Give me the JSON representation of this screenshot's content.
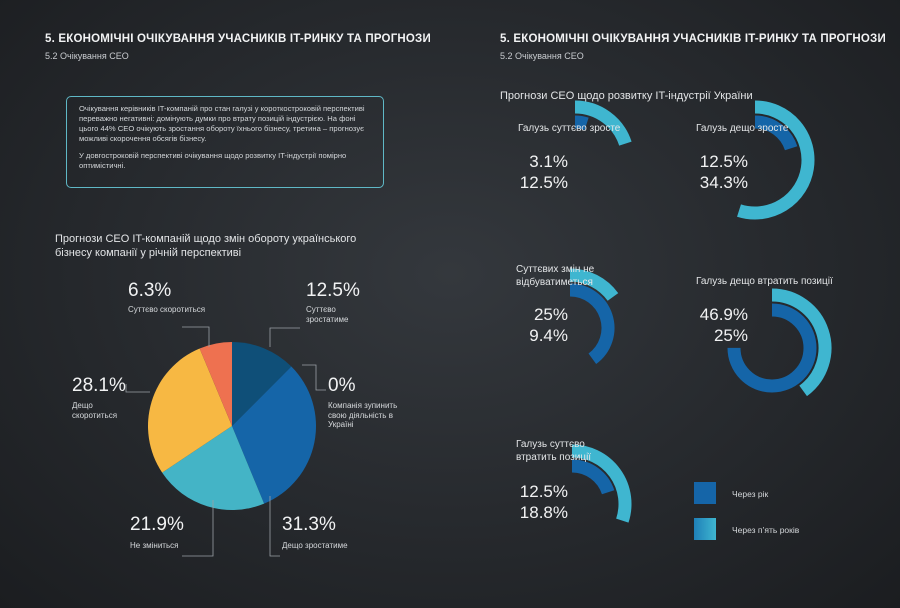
{
  "left": {
    "section_title": "5. ЕКОНОМІЧНІ ОЧІКУВАННЯ УЧАСНИКІВ IT-РИНКУ ТА ПРОГНОЗИ",
    "section_sub": "5.2 Очікування CEO",
    "info_p1": "Очікування керівників IT-компаній про стан галузі у короткостроковій перспективі переважно негативні: домінують думки про втрату позицій індустрією. На фоні цього 44% CEO очікують зростання обороту їхнього бізнесу, третина – прогнозує можливі скорочення обсягів бізнесу.",
    "info_p2": "У довгостроковій перспективі очікування щодо розвитку IT-індустрії помірно оптимістичні."
  },
  "right": {
    "section_title": "5. ЕКОНОМІЧНІ ОЧІКУВАННЯ УЧАСНИКІВ IT-РИНКУ ТА ПРОГНОЗИ",
    "section_sub": "5.2 Очікування CEO"
  },
  "chart_data": [
    {
      "type": "pie",
      "title": "Прогнози CEO IT-компаній щодо змін обороту українського бізнесу компанії у річній перспективі",
      "slices": [
        {
          "label": "Суттєво зростатиме",
          "value": 12.5,
          "value_label": "12.5%",
          "color": "#0f4f78"
        },
        {
          "label": "Компанія зупинить свою діяльність в Україні",
          "value": 0,
          "value_label": "0%",
          "color": "#0a3a5c"
        },
        {
          "label": "Дещо зростатиме",
          "value": 31.3,
          "value_label": "31.3%",
          "color": "#1565a8"
        },
        {
          "label": "Не зміниться",
          "value": 21.9,
          "value_label": "21.9%",
          "color": "#44b4c6"
        },
        {
          "label": "Дещо скоротиться",
          "value": 28.1,
          "value_label": "28.1%",
          "color": "#f7b843"
        },
        {
          "label": "Суттєво скоротиться",
          "value": 6.3,
          "value_label": "6.3%",
          "color": "#ee7150"
        }
      ]
    },
    {
      "type": "radial-bar",
      "title": "Прогнози CEO щодо розвитку IT-індустрії України",
      "series": [
        {
          "name": "Через рік",
          "color": "#1565a8"
        },
        {
          "name": "Через п'ять років",
          "color": "#3fb6d0"
        }
      ],
      "categories": [
        {
          "label": "Галузь суттєво зросте",
          "values": [
            3.1,
            12.5
          ],
          "value_labels": [
            "3.1%",
            "12.5%"
          ]
        },
        {
          "label": "Галузь дещо зросте",
          "values": [
            12.5,
            34.3
          ],
          "value_labels": [
            "12.5%",
            "34.3%"
          ]
        },
        {
          "label": "Суттєвих змін не відбуватиметься",
          "values": [
            25,
            9.4
          ],
          "value_labels": [
            "25%",
            "9.4%"
          ]
        },
        {
          "label": "Галузь дещо втратить позиції",
          "values": [
            46.9,
            25
          ],
          "value_labels": [
            "46.9%",
            "25%"
          ]
        },
        {
          "label": "Галузь суттєво втратить позиції",
          "values": [
            12.5,
            18.8
          ],
          "value_labels": [
            "12.5%",
            "18.8%"
          ]
        }
      ],
      "legend": [
        {
          "label": "Через рік",
          "color": "#1565a8"
        },
        {
          "label": "Через п’ять років",
          "color": "#3fb6d0"
        }
      ]
    }
  ]
}
